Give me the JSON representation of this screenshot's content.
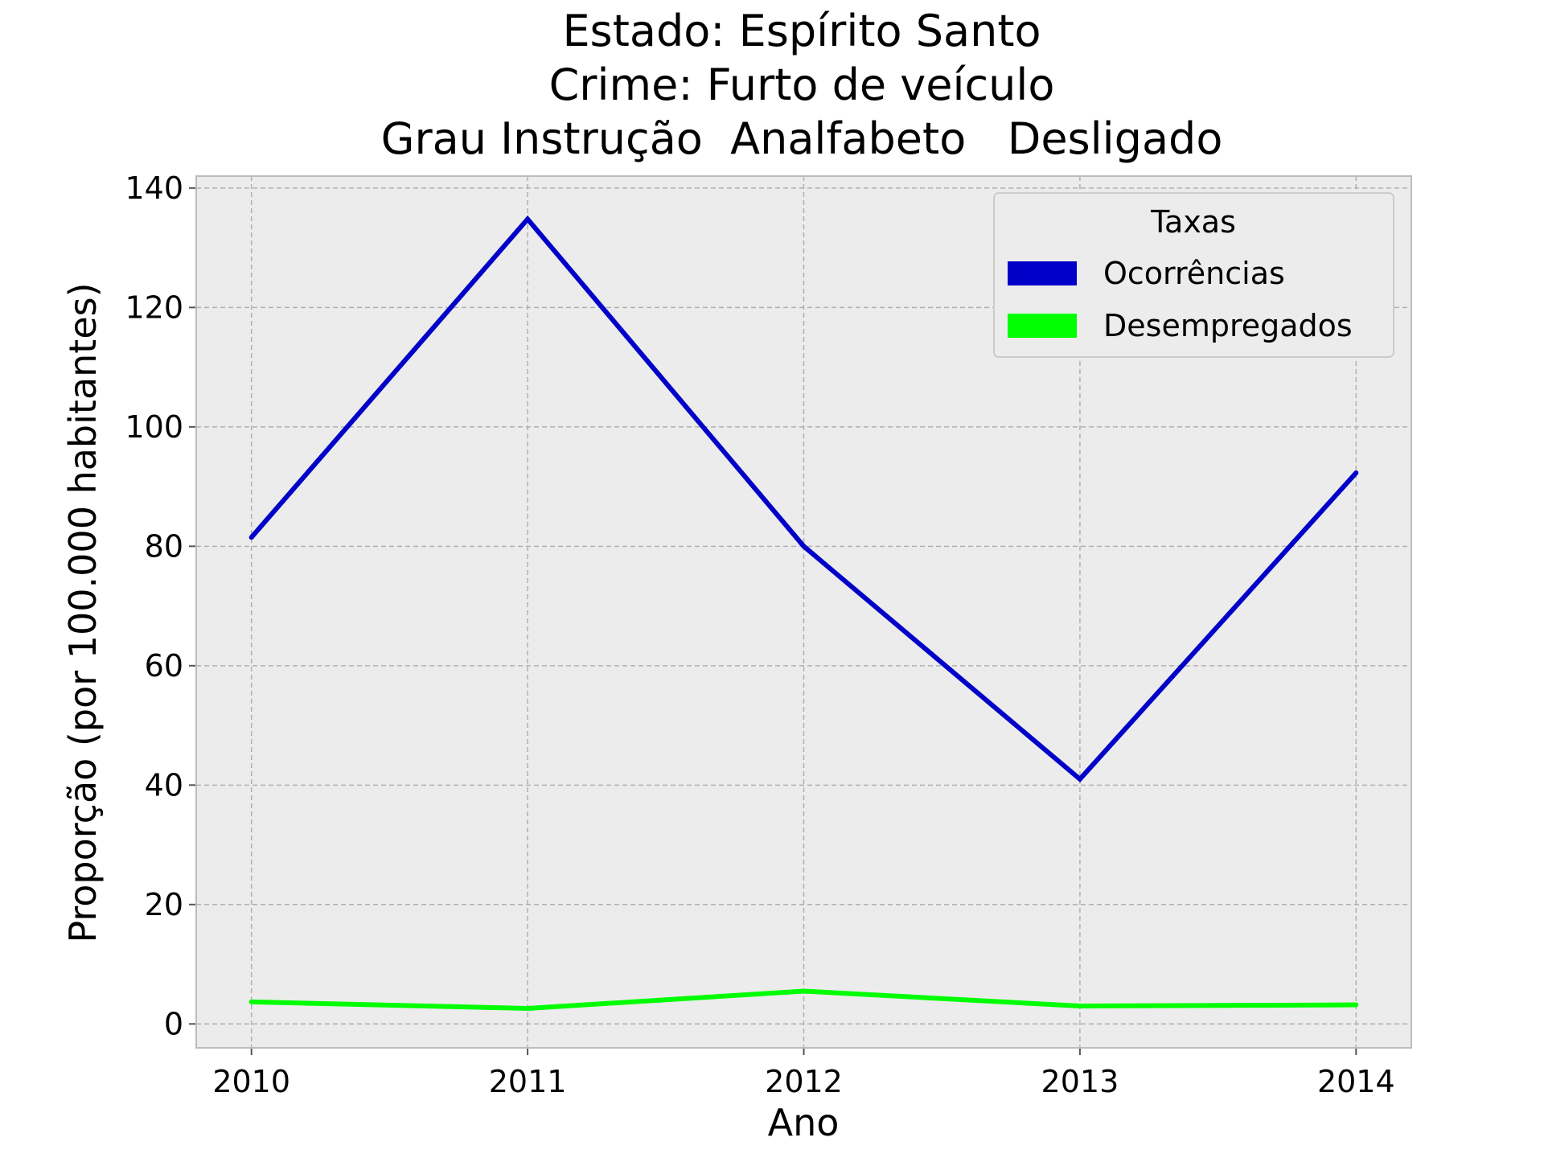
{
  "colors": {
    "plot_background": "#ececec",
    "grid": "#b0b0b0",
    "frame": "#bcbcbc",
    "ocorrencias": "#0000c8",
    "desempregados": "#00ff00"
  },
  "chart_data": {
    "type": "line",
    "title_lines": [
      "Estado: Espírito Santo",
      "Crime: Furto de veículo",
      "Grau Instrução  Analfabeto   Desligado"
    ],
    "xlabel": "Ano",
    "ylabel": "Proporção (por 100.000 habitantes)",
    "x": [
      "2010",
      "2011",
      "2012",
      "2013",
      "2014"
    ],
    "xlim": [
      2009.8,
      2014.2
    ],
    "ylim": [
      -4,
      142
    ],
    "yticks": [
      0,
      20,
      40,
      60,
      80,
      100,
      120,
      140
    ],
    "grid": true,
    "legend": {
      "title": "Taxas",
      "placement": "top-right"
    },
    "series": [
      {
        "name": "Ocorrências",
        "color": "#0000c8",
        "values": [
          81.5,
          134.8,
          80.0,
          41.0,
          92.3
        ]
      },
      {
        "name": "Desempregados",
        "color": "#00ff00",
        "values": [
          3.7,
          2.6,
          5.5,
          3.0,
          3.2
        ]
      }
    ]
  }
}
